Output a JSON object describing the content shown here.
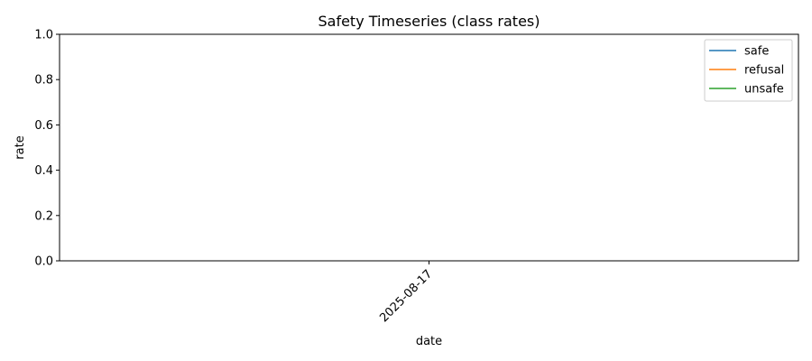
{
  "chart_data": {
    "type": "line",
    "title": "Safety Timeseries (class rates)",
    "xlabel": "date",
    "ylabel": "rate",
    "x": [
      "2025-08-17"
    ],
    "ylim": [
      0,
      1
    ],
    "yticks": [
      "0.0",
      "0.2",
      "0.4",
      "0.6",
      "0.8",
      "1.0"
    ],
    "xticks": [
      "2025-08-17"
    ],
    "grid": false,
    "legend_position": "top-right",
    "series": [
      {
        "name": "safe",
        "color": "#1f77b4",
        "values": [
          null
        ]
      },
      {
        "name": "refusal",
        "color": "#ff7f0e",
        "values": [
          null
        ]
      },
      {
        "name": "unsafe",
        "color": "#2ca02c",
        "values": [
          null
        ]
      }
    ]
  }
}
